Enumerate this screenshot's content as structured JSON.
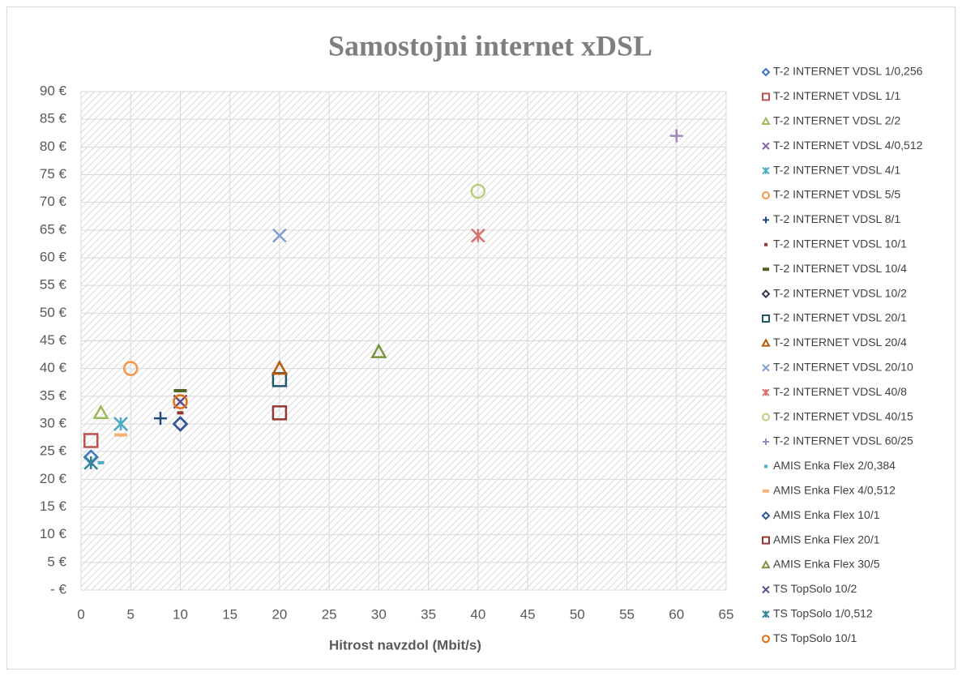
{
  "chart_data": {
    "type": "scatter",
    "title": "Samostojni internet xDSL",
    "x_label": "Hitrost navzdol (Mbit/s)",
    "xlim": [
      0,
      65
    ],
    "xticks": [
      0,
      5,
      10,
      15,
      20,
      25,
      30,
      35,
      40,
      45,
      50,
      55,
      60,
      65
    ],
    "ylim": [
      0,
      90
    ],
    "yticks": [
      {
        "value": 0,
        "label": "-  €"
      },
      {
        "value": 5,
        "label": "5 €"
      },
      {
        "value": 10,
        "label": "10 €"
      },
      {
        "value": 15,
        "label": "15 €"
      },
      {
        "value": 20,
        "label": "20 €"
      },
      {
        "value": 25,
        "label": "25 €"
      },
      {
        "value": 30,
        "label": "30 €"
      },
      {
        "value": 35,
        "label": "35 €"
      },
      {
        "value": 40,
        "label": "40 €"
      },
      {
        "value": 45,
        "label": "45 €"
      },
      {
        "value": 50,
        "label": "50 €"
      },
      {
        "value": 55,
        "label": "55 €"
      },
      {
        "value": 60,
        "label": "60 €"
      },
      {
        "value": 65,
        "label": "65 €"
      },
      {
        "value": 70,
        "label": "70 €"
      },
      {
        "value": 75,
        "label": "75 €"
      },
      {
        "value": 80,
        "label": "80 €"
      },
      {
        "value": 85,
        "label": "85 €"
      },
      {
        "value": 90,
        "label": "90 €"
      }
    ],
    "grid": true,
    "legend": "right",
    "series": [
      {
        "name": "T-2 INTERNET VDSL 1/0,256",
        "color": "#4472c4",
        "marker": "diamond",
        "x": [
          1
        ],
        "values": [
          24
        ]
      },
      {
        "name": "T-2 INTERNET VDSL 1/1",
        "color": "#c0504d",
        "marker": "square",
        "x": [
          1
        ],
        "values": [
          27
        ]
      },
      {
        "name": "T-2 INTERNET VDSL 2/2",
        "color": "#9bbb59",
        "marker": "triangle",
        "x": [
          2
        ],
        "values": [
          32
        ]
      },
      {
        "name": "T-2 INTERNET VDSL 4/0,512",
        "color": "#8064a2",
        "marker": "x",
        "x": [
          4
        ],
        "values": [
          30
        ]
      },
      {
        "name": "T-2 INTERNET VDSL 4/1",
        "color": "#4bacc6",
        "marker": "asterisk",
        "x": [
          4
        ],
        "values": [
          30
        ]
      },
      {
        "name": "T-2 INTERNET VDSL 5/5",
        "color": "#f79646",
        "marker": "circle",
        "x": [
          5
        ],
        "values": [
          40
        ]
      },
      {
        "name": "T-2 INTERNET VDSL 8/1",
        "color": "#1f497d",
        "marker": "plus",
        "x": [
          8
        ],
        "values": [
          31
        ]
      },
      {
        "name": "T-2 INTERNET VDSL 10/1",
        "color": "#943634",
        "marker": "dash",
        "x": [
          10
        ],
        "values": [
          32
        ]
      },
      {
        "name": "T-2 INTERNET VDSL 10/4",
        "color": "#4f6228",
        "marker": "longdash",
        "x": [
          10
        ],
        "values": [
          36
        ]
      },
      {
        "name": "T-2 INTERNET VDSL 10/2",
        "color": "#3f3151",
        "marker": "diamond",
        "x": [
          10
        ],
        "values": [
          30
        ]
      },
      {
        "name": "T-2 INTERNET VDSL 20/1",
        "color": "#215968",
        "marker": "square",
        "x": [
          20
        ],
        "values": [
          38
        ]
      },
      {
        "name": "T-2 INTERNET VDSL 20/4",
        "color": "#b65708",
        "marker": "triangle",
        "x": [
          20
        ],
        "values": [
          40
        ]
      },
      {
        "name": "T-2 INTERNET VDSL 20/10",
        "color": "#7f9fd1",
        "marker": "x",
        "x": [
          20
        ],
        "values": [
          64
        ]
      },
      {
        "name": "T-2 INTERNET VDSL 40/8",
        "color": "#d9706f",
        "marker": "asterisk",
        "x": [
          40
        ],
        "values": [
          64
        ]
      },
      {
        "name": "T-2 INTERNET VDSL 40/15",
        "color": "#b3d17a",
        "marker": "circle",
        "x": [
          40
        ],
        "values": [
          72
        ]
      },
      {
        "name": "T-2 INTERNET VDSL 60/25",
        "color": "#9f86bd",
        "marker": "plus",
        "x": [
          60
        ],
        "values": [
          82
        ]
      },
      {
        "name": "AMIS  Enka Flex 2/0,384",
        "color": "#4bacc6",
        "marker": "dash",
        "x": [
          2
        ],
        "values": [
          23
        ]
      },
      {
        "name": "AMIS  Enka Flex 4/0,512",
        "color": "#f9b074",
        "marker": "longdash",
        "x": [
          4
        ],
        "values": [
          28
        ]
      },
      {
        "name": "AMIS  Enka Flex 10/1",
        "color": "#2e5597",
        "marker": "diamond",
        "x": [
          10
        ],
        "values": [
          30
        ]
      },
      {
        "name": "AMIS  Enka Flex 20/1",
        "color": "#953735",
        "marker": "square",
        "x": [
          20
        ],
        "values": [
          32
        ]
      },
      {
        "name": "AMIS  Enka Flex 30/5",
        "color": "#77933c",
        "marker": "triangle",
        "x": [
          30
        ],
        "values": [
          43
        ]
      },
      {
        "name": "TS  TopSolo 10/2",
        "color": "#5f4b8b",
        "marker": "x",
        "x": [
          10
        ],
        "values": [
          34
        ]
      },
      {
        "name": "TS  TopSolo 1/0,512",
        "color": "#31859c",
        "marker": "asterisk",
        "x": [
          1
        ],
        "values": [
          23
        ]
      },
      {
        "name": "TS  TopSolo 10/1",
        "color": "#e46c0a",
        "marker": "circle",
        "x": [
          10
        ],
        "values": [
          34
        ]
      }
    ]
  }
}
